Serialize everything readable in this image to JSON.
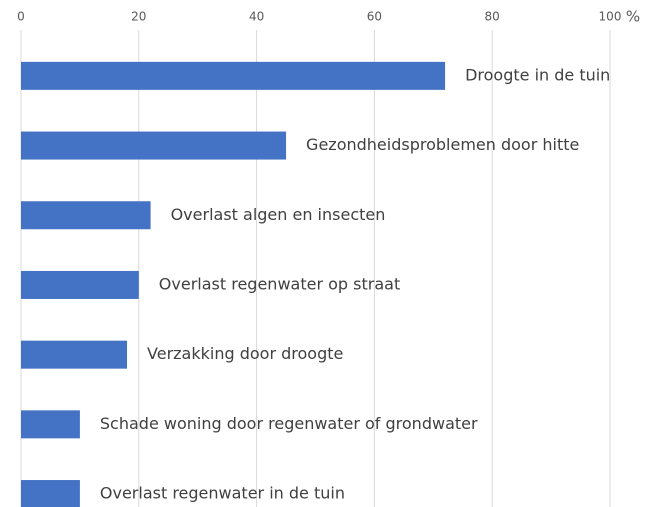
{
  "chart_data": {
    "type": "barh",
    "x_label": "%",
    "categories": [
      "Droogte in de tuin",
      "Gezondheidsproblemen door hitte",
      "Overlast algen en insecten",
      "Overlast regenwater op straat",
      "Verzakking door droogte",
      "Schade woning door regenwater of grondwater",
      "Overlast regenwater in de tuin"
    ],
    "values": [
      72,
      45,
      22,
      20,
      18,
      10,
      10
    ],
    "color": "#4472c4",
    "xlim": [
      0,
      100
    ],
    "xticks": [
      0,
      20,
      40,
      60,
      80,
      100
    ],
    "grid": true
  }
}
